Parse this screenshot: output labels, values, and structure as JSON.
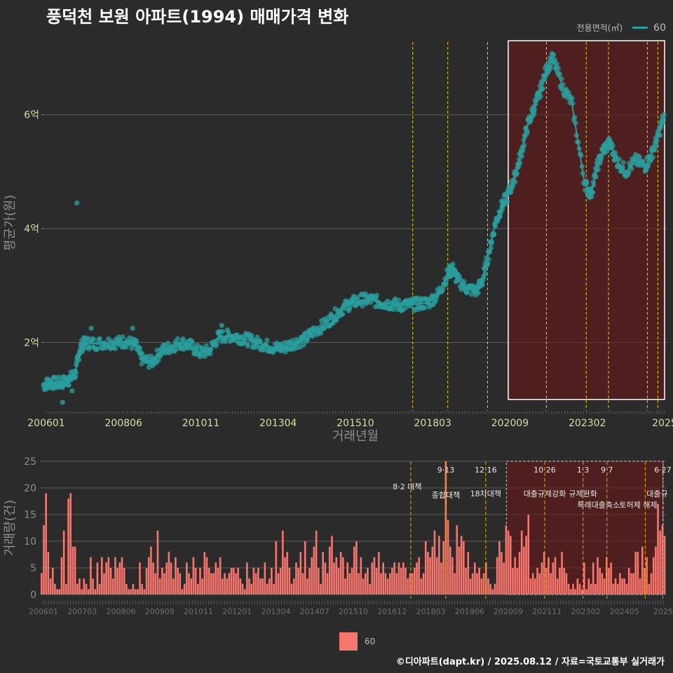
{
  "title": "풍덕천 보원 아파트(1994) 매매가격 변화",
  "legend": {
    "title": "전용면적(㎡)",
    "item": "60",
    "line_color": "#2a9d9d",
    "bar_color": "#f8766d"
  },
  "footer": "©디아파트(dapt.kr) / 2025.08.12 / 자료=국토교통부 실거래가",
  "chart_data": [
    {
      "type": "scatter",
      "xlabel": "거래년월",
      "ylabel": "평균가(원)",
      "x_ticks": [
        "200601",
        "200806",
        "201011",
        "201304",
        "201510",
        "201803",
        "202009",
        "202302",
        "2025"
      ],
      "y_ticks": [
        {
          "value": 2,
          "label": "2억"
        },
        {
          "value": 4,
          "label": "4억"
        },
        {
          "value": 6,
          "label": "6억"
        }
      ],
      "ylim": [
        0.8,
        7.4
      ],
      "xlim": [
        2006.0,
        2025.6
      ],
      "grid": true,
      "policy_lines": [
        2017.6,
        2018.7,
        2019.95,
        2021.8,
        2023.05,
        2023.75,
        2024.97,
        2025.3
      ],
      "highlight_range": [
        2020.6,
        2025.6,
        1.0,
        7.3
      ],
      "series": [
        {
          "name": "60",
          "points": [
            [
              2006.0,
              1.25
            ],
            [
              2006.2,
              1.3
            ],
            [
              2006.4,
              1.28
            ],
            [
              2006.6,
              1.3
            ],
            [
              2006.8,
              1.35
            ],
            [
              2007.0,
              1.45
            ],
            [
              2007.15,
              1.9
            ],
            [
              2007.3,
              2.0
            ],
            [
              2007.6,
              1.98
            ],
            [
              2008.0,
              2.0
            ],
            [
              2008.3,
              2.0
            ],
            [
              2008.6,
              2.02
            ],
            [
              2008.9,
              1.95
            ],
            [
              2009.1,
              1.7
            ],
            [
              2009.4,
              1.65
            ],
            [
              2009.7,
              1.85
            ],
            [
              2010.0,
              1.92
            ],
            [
              2010.3,
              2.0
            ],
            [
              2010.6,
              1.95
            ],
            [
              2010.9,
              1.82
            ],
            [
              2011.2,
              1.85
            ],
            [
              2011.5,
              2.1
            ],
            [
              2011.8,
              2.12
            ],
            [
              2012.1,
              2.1
            ],
            [
              2012.4,
              2.05
            ],
            [
              2012.7,
              2.0
            ],
            [
              2013.0,
              1.95
            ],
            [
              2013.3,
              1.9
            ],
            [
              2013.6,
              1.92
            ],
            [
              2013.9,
              2.0
            ],
            [
              2014.2,
              2.05
            ],
            [
              2014.5,
              2.2
            ],
            [
              2014.8,
              2.3
            ],
            [
              2015.1,
              2.45
            ],
            [
              2015.4,
              2.6
            ],
            [
              2015.7,
              2.7
            ],
            [
              2016.0,
              2.75
            ],
            [
              2016.3,
              2.75
            ],
            [
              2016.6,
              2.7
            ],
            [
              2016.9,
              2.68
            ],
            [
              2017.2,
              2.65
            ],
            [
              2017.5,
              2.66
            ],
            [
              2017.8,
              2.68
            ],
            [
              2018.1,
              2.7
            ],
            [
              2018.4,
              2.85
            ],
            [
              2018.7,
              3.2
            ],
            [
              2018.85,
              3.3
            ],
            [
              2019.0,
              3.1
            ],
            [
              2019.3,
              2.95
            ],
            [
              2019.6,
              2.9
            ],
            [
              2019.8,
              3.1
            ],
            [
              2020.0,
              3.6
            ],
            [
              2020.2,
              4.1
            ],
            [
              2020.4,
              4.4
            ],
            [
              2020.6,
              4.6
            ],
            [
              2020.8,
              4.9
            ],
            [
              2021.0,
              5.3
            ],
            [
              2021.2,
              5.8
            ],
            [
              2021.4,
              6.1
            ],
            [
              2021.6,
              6.4
            ],
            [
              2021.8,
              6.8
            ],
            [
              2022.0,
              7.0
            ],
            [
              2022.3,
              6.5
            ],
            [
              2022.6,
              6.2
            ],
            [
              2023.0,
              4.8
            ],
            [
              2023.2,
              4.6
            ],
            [
              2023.4,
              5.1
            ],
            [
              2023.6,
              5.4
            ],
            [
              2023.8,
              5.5
            ],
            [
              2024.0,
              5.2
            ],
            [
              2024.3,
              5.0
            ],
            [
              2024.6,
              5.2
            ],
            [
              2024.9,
              5.1
            ],
            [
              2025.1,
              5.3
            ],
            [
              2025.3,
              5.6
            ],
            [
              2025.5,
              6.0
            ]
          ],
          "outliers": [
            [
              2006.6,
              0.95
            ],
            [
              2006.9,
              1.15
            ],
            [
              2007.5,
              2.25
            ],
            [
              2007.05,
              4.45
            ],
            [
              2008.8,
              2.25
            ],
            [
              2011.6,
              2.3
            ]
          ]
        }
      ]
    },
    {
      "type": "bar",
      "xlabel": "",
      "ylabel": "거래량(건)",
      "x_ticks": [
        "200601",
        "200703",
        "200806",
        "200908",
        "201011",
        "201201",
        "201304",
        "201407",
        "201510",
        "201612",
        "201803",
        "201906",
        "202009",
        "202111",
        "202302",
        "202405",
        "2025"
      ],
      "y_ticks": [
        0,
        5,
        10,
        15,
        20,
        25
      ],
      "ylim": [
        0,
        25
      ],
      "xlim": [
        2006.0,
        2025.6
      ],
      "grid": true,
      "highlight_range": [
        2020.6,
        2025.6
      ],
      "annotations": [
        {
          "x": 2017.6,
          "date": "",
          "text": "8·2 대책"
        },
        {
          "x": 2018.7,
          "date": "9·13",
          "text": "종합대책"
        },
        {
          "x": 2019.95,
          "date": "12·16",
          "text": "18차대책"
        },
        {
          "x": 2021.8,
          "date": "10·26",
          "text": "대출규제강화"
        },
        {
          "x": 2023.0,
          "date": "1·3",
          "text": "규제완화"
        },
        {
          "x": 2023.75,
          "date": "9·7",
          "text": "특례대출축소"
        },
        {
          "x": 2024.95,
          "date": "",
          "text": "토허제 해제"
        },
        {
          "x": 2025.5,
          "date": "6·27",
          "text": "대출규"
        }
      ],
      "series": [
        {
          "name": "60",
          "values": [
            4,
            13,
            19,
            8,
            3,
            5,
            2,
            1,
            1,
            7,
            12,
            2,
            18,
            19,
            9,
            9,
            2,
            3,
            1,
            3,
            2,
            1,
            7,
            3,
            1,
            6,
            2,
            7,
            4,
            6,
            7,
            5,
            3,
            7,
            5,
            6,
            7,
            5,
            2,
            1,
            1,
            2,
            1,
            1,
            6,
            2,
            1,
            5,
            7,
            9,
            6,
            4,
            12,
            3,
            5,
            4,
            6,
            8,
            6,
            3,
            7,
            5,
            4,
            1,
            2,
            6,
            4,
            3,
            7,
            5,
            2,
            5,
            3,
            8,
            7,
            5,
            4,
            4,
            6,
            5,
            7,
            3,
            4,
            3,
            4,
            5,
            5,
            4,
            5,
            3,
            2,
            1,
            6,
            3,
            2,
            5,
            4,
            5,
            3,
            3,
            6,
            2,
            3,
            5,
            2,
            10,
            4,
            5,
            12,
            7,
            8,
            5,
            2,
            3,
            6,
            5,
            8,
            4,
            10,
            3,
            5,
            7,
            9,
            12,
            5,
            2,
            8,
            6,
            4,
            9,
            11,
            6,
            7,
            5,
            8,
            7,
            3,
            6,
            4,
            5,
            9,
            10,
            4,
            7,
            3,
            4,
            5,
            2,
            6,
            7,
            5,
            8,
            4,
            6,
            4,
            3,
            4,
            5,
            6,
            4,
            6,
            5,
            6,
            5,
            3,
            4,
            4,
            5,
            6,
            7,
            3,
            4,
            10,
            8,
            7,
            9,
            12,
            7,
            11,
            6,
            10,
            25,
            14,
            9,
            7,
            4,
            13,
            9,
            11,
            10,
            5,
            8,
            3,
            4,
            6,
            4,
            5,
            3,
            4,
            6,
            3,
            2,
            1,
            2,
            7,
            10,
            8,
            6,
            13,
            12,
            11,
            5,
            7,
            5,
            8,
            12,
            9,
            11,
            15,
            3,
            4,
            3,
            5,
            4,
            6,
            8,
            5,
            7,
            4,
            6,
            7,
            3,
            5,
            8,
            5,
            4,
            2,
            1,
            2,
            1,
            3,
            2,
            1,
            6,
            1,
            3,
            2,
            6,
            2,
            7,
            5,
            4,
            3,
            7,
            5,
            6,
            2,
            3,
            2,
            4,
            3,
            3,
            2,
            5,
            4,
            4,
            8,
            8,
            3,
            9,
            5,
            7,
            2,
            4,
            7,
            9,
            17,
            12,
            13,
            11
          ]
        }
      ]
    }
  ]
}
